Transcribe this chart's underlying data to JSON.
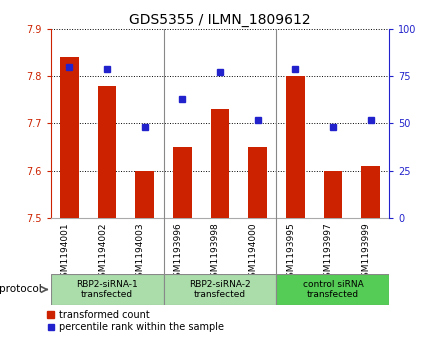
{
  "title": "GDS5355 / ILMN_1809612",
  "samples": [
    "GSM1194001",
    "GSM1194002",
    "GSM1194003",
    "GSM1193996",
    "GSM1193998",
    "GSM1194000",
    "GSM1193995",
    "GSM1193997",
    "GSM1193999"
  ],
  "transformed_counts": [
    7.84,
    7.78,
    7.6,
    7.65,
    7.73,
    7.65,
    7.8,
    7.6,
    7.61
  ],
  "percentile_ranks": [
    80,
    79,
    48,
    63,
    77,
    52,
    79,
    48,
    52
  ],
  "ylim_left": [
    7.5,
    7.9
  ],
  "ylim_right": [
    0,
    100
  ],
  "yticks_left": [
    7.5,
    7.6,
    7.7,
    7.8,
    7.9
  ],
  "yticks_right": [
    0,
    25,
    50,
    75,
    100
  ],
  "bar_color": "#cc2200",
  "dot_color": "#2222cc",
  "groups": [
    {
      "label": "RBP2-siRNA-1\ntransfected",
      "start": 0,
      "end": 3,
      "color": "#aaddaa"
    },
    {
      "label": "RBP2-siRNA-2\ntransfected",
      "start": 3,
      "end": 6,
      "color": "#aaddaa"
    },
    {
      "label": "control siRNA\ntransfected",
      "start": 6,
      "end": 9,
      "color": "#55cc55"
    }
  ],
  "protocol_label": "protocol",
  "legend_bar_label": "transformed count",
  "legend_dot_label": "percentile rank within the sample",
  "bar_width": 0.5,
  "grid_color": "#000000",
  "background_color": "#ffffff",
  "plot_bg_color": "#ffffff",
  "tick_label_color_left": "#cc2200",
  "tick_label_color_right": "#2222cc",
  "title_fontsize": 10,
  "tick_fontsize": 7,
  "sample_label_fontsize": 6.5,
  "group_label_fontsize": 6.5,
  "legend_fontsize": 7
}
